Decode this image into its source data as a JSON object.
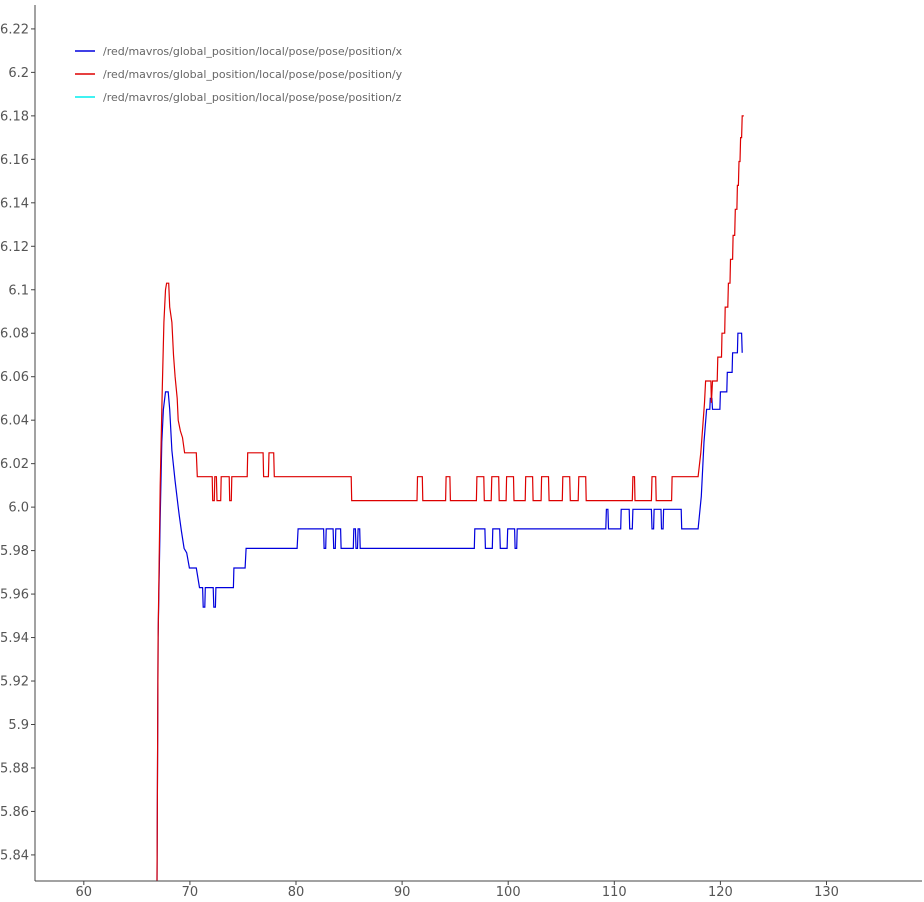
{
  "chart_data": {
    "type": "line",
    "title": "",
    "xlabel": "",
    "ylabel": "",
    "xlim": [
      55.4,
      139
    ],
    "ylim": [
      5.828,
      6.231
    ],
    "x_ticks": [
      60,
      70,
      80,
      90,
      100,
      110,
      120,
      130
    ],
    "y_ticks": [
      5.84,
      5.86,
      5.88,
      5.9,
      5.92,
      5.94,
      5.96,
      5.98,
      6.0,
      6.02,
      6.04,
      6.06,
      6.08,
      6.1,
      6.12,
      6.14,
      6.16,
      6.18,
      6.2,
      6.22
    ],
    "y_tick_labels": [
      "5.84",
      "5.86",
      "5.88",
      "5.9",
      "5.92",
      "5.94",
      "5.96",
      "5.98",
      "6.0",
      "6.02",
      "6.04",
      "6.06",
      "6.08",
      "6.1",
      "6.12",
      "6.14",
      "6.16",
      "6.18",
      "6.2",
      "6.22"
    ],
    "grid": false,
    "legend_position": "top-left",
    "series": [
      {
        "name": "/red/mavros/global_position/local/pose/pose/position/x",
        "color": "#0000dd",
        "points": [
          [
            66.9,
            5.828
          ],
          [
            67.0,
            5.94
          ],
          [
            67.2,
            5.995
          ],
          [
            67.35,
            6.03
          ],
          [
            67.5,
            6.045
          ],
          [
            67.7,
            6.053
          ],
          [
            67.95,
            6.053
          ],
          [
            68.1,
            6.045
          ],
          [
            68.3,
            6.026
          ],
          [
            68.6,
            6.012
          ],
          [
            68.9,
            6.0
          ],
          [
            69.0,
            5.996
          ],
          [
            69.2,
            5.989
          ],
          [
            69.45,
            5.981
          ],
          [
            69.7,
            5.979
          ],
          [
            69.95,
            5.972
          ],
          [
            70.6,
            5.972
          ],
          [
            70.9,
            5.963
          ],
          [
            71.2,
            5.963
          ],
          [
            71.25,
            5.954
          ],
          [
            71.4,
            5.954
          ],
          [
            71.45,
            5.963
          ],
          [
            72.2,
            5.963
          ],
          [
            72.25,
            5.954
          ],
          [
            72.4,
            5.954
          ],
          [
            72.45,
            5.963
          ],
          [
            74.1,
            5.963
          ],
          [
            74.15,
            5.972
          ],
          [
            75.2,
            5.972
          ],
          [
            75.3,
            5.981
          ],
          [
            80.1,
            5.981
          ],
          [
            80.2,
            5.99
          ],
          [
            82.6,
            5.99
          ],
          [
            82.65,
            5.981
          ],
          [
            82.8,
            5.981
          ],
          [
            82.85,
            5.99
          ],
          [
            83.5,
            5.99
          ],
          [
            83.55,
            5.981
          ],
          [
            83.7,
            5.981
          ],
          [
            83.75,
            5.99
          ],
          [
            84.2,
            5.99
          ],
          [
            84.25,
            5.981
          ],
          [
            85.4,
            5.981
          ],
          [
            85.45,
            5.99
          ],
          [
            85.6,
            5.99
          ],
          [
            85.65,
            5.981
          ],
          [
            85.8,
            5.981
          ],
          [
            85.85,
            5.99
          ],
          [
            86.0,
            5.99
          ],
          [
            86.05,
            5.981
          ],
          [
            96.8,
            5.981
          ],
          [
            96.85,
            5.99
          ],
          [
            97.8,
            5.99
          ],
          [
            97.85,
            5.981
          ],
          [
            98.5,
            5.981
          ],
          [
            98.55,
            5.99
          ],
          [
            99.2,
            5.99
          ],
          [
            99.25,
            5.981
          ],
          [
            99.9,
            5.981
          ],
          [
            99.95,
            5.99
          ],
          [
            100.6,
            5.99
          ],
          [
            100.65,
            5.981
          ],
          [
            100.8,
            5.981
          ],
          [
            100.85,
            5.99
          ],
          [
            109.2,
            5.99
          ],
          [
            109.25,
            5.999
          ],
          [
            109.4,
            5.999
          ],
          [
            109.45,
            5.99
          ],
          [
            110.6,
            5.99
          ],
          [
            110.65,
            5.999
          ],
          [
            111.4,
            5.999
          ],
          [
            111.45,
            5.99
          ],
          [
            111.7,
            5.99
          ],
          [
            111.75,
            5.999
          ],
          [
            113.5,
            5.999
          ],
          [
            113.55,
            5.99
          ],
          [
            113.7,
            5.99
          ],
          [
            113.75,
            5.999
          ],
          [
            114.4,
            5.999
          ],
          [
            114.45,
            5.99
          ],
          [
            114.6,
            5.99
          ],
          [
            114.65,
            5.999
          ],
          [
            116.3,
            5.999
          ],
          [
            116.35,
            5.99
          ],
          [
            117.9,
            5.99
          ],
          [
            118.2,
            6.005
          ],
          [
            118.45,
            6.03
          ],
          [
            118.7,
            6.045
          ],
          [
            119.0,
            6.045
          ],
          [
            119.05,
            6.05
          ],
          [
            119.2,
            6.05
          ],
          [
            119.25,
            6.045
          ],
          [
            119.95,
            6.045
          ],
          [
            120.0,
            6.053
          ],
          [
            120.6,
            6.053
          ],
          [
            120.65,
            6.062
          ],
          [
            121.1,
            6.062
          ],
          [
            121.15,
            6.071
          ],
          [
            121.6,
            6.071
          ],
          [
            121.65,
            6.08
          ],
          [
            122.0,
            6.08
          ],
          [
            122.05,
            6.071
          ]
        ]
      },
      {
        "name": "/red/mavros/global_position/local/pose/pose/position/y",
        "color": "#dd0000",
        "points": [
          [
            66.9,
            5.828
          ],
          [
            67.0,
            5.94
          ],
          [
            67.2,
            6.01
          ],
          [
            67.4,
            6.055
          ],
          [
            67.55,
            6.085
          ],
          [
            67.7,
            6.1
          ],
          [
            67.8,
            6.103
          ],
          [
            68.0,
            6.103
          ],
          [
            68.1,
            6.092
          ],
          [
            68.3,
            6.085
          ],
          [
            68.45,
            6.07
          ],
          [
            68.6,
            6.06
          ],
          [
            68.8,
            6.05
          ],
          [
            68.9,
            6.04
          ],
          [
            69.1,
            6.035
          ],
          [
            69.3,
            6.032
          ],
          [
            69.5,
            6.025
          ],
          [
            70.6,
            6.025
          ],
          [
            70.7,
            6.014
          ],
          [
            72.1,
            6.014
          ],
          [
            72.15,
            6.003
          ],
          [
            72.3,
            6.003
          ],
          [
            72.35,
            6.014
          ],
          [
            72.5,
            6.014
          ],
          [
            72.55,
            6.003
          ],
          [
            72.9,
            6.003
          ],
          [
            72.95,
            6.014
          ],
          [
            73.7,
            6.014
          ],
          [
            73.75,
            6.003
          ],
          [
            73.9,
            6.003
          ],
          [
            73.95,
            6.014
          ],
          [
            75.4,
            6.014
          ],
          [
            75.45,
            6.025
          ],
          [
            76.9,
            6.025
          ],
          [
            76.95,
            6.014
          ],
          [
            77.4,
            6.014
          ],
          [
            77.45,
            6.025
          ],
          [
            77.9,
            6.025
          ],
          [
            77.95,
            6.014
          ],
          [
            85.2,
            6.014
          ],
          [
            85.25,
            6.003
          ],
          [
            91.4,
            6.003
          ],
          [
            91.45,
            6.014
          ],
          [
            91.9,
            6.014
          ],
          [
            91.95,
            6.003
          ],
          [
            94.1,
            6.003
          ],
          [
            94.15,
            6.014
          ],
          [
            94.5,
            6.014
          ],
          [
            94.55,
            6.003
          ],
          [
            97.0,
            6.003
          ],
          [
            97.05,
            6.014
          ],
          [
            97.7,
            6.014
          ],
          [
            97.75,
            6.003
          ],
          [
            98.4,
            6.003
          ],
          [
            98.45,
            6.014
          ],
          [
            99.1,
            6.014
          ],
          [
            99.15,
            6.003
          ],
          [
            99.8,
            6.003
          ],
          [
            99.85,
            6.014
          ],
          [
            100.5,
            6.014
          ],
          [
            100.55,
            6.003
          ],
          [
            101.6,
            6.003
          ],
          [
            101.65,
            6.014
          ],
          [
            102.3,
            6.014
          ],
          [
            102.35,
            6.003
          ],
          [
            103.1,
            6.003
          ],
          [
            103.15,
            6.014
          ],
          [
            103.8,
            6.014
          ],
          [
            103.85,
            6.003
          ],
          [
            105.1,
            6.003
          ],
          [
            105.15,
            6.014
          ],
          [
            105.8,
            6.014
          ],
          [
            105.85,
            6.003
          ],
          [
            106.6,
            6.003
          ],
          [
            106.65,
            6.014
          ],
          [
            107.3,
            6.014
          ],
          [
            107.35,
            6.003
          ],
          [
            111.7,
            6.003
          ],
          [
            111.75,
            6.014
          ],
          [
            111.9,
            6.014
          ],
          [
            111.95,
            6.003
          ],
          [
            113.5,
            6.003
          ],
          [
            113.55,
            6.014
          ],
          [
            113.9,
            6.014
          ],
          [
            113.95,
            6.003
          ],
          [
            115.4,
            6.003
          ],
          [
            115.45,
            6.014
          ],
          [
            117.9,
            6.014
          ],
          [
            118.15,
            6.025
          ],
          [
            118.35,
            6.038
          ],
          [
            118.5,
            6.048
          ],
          [
            118.6,
            6.058
          ],
          [
            119.1,
            6.058
          ],
          [
            119.15,
            6.048
          ],
          [
            119.25,
            6.058
          ],
          [
            119.7,
            6.058
          ],
          [
            119.75,
            6.069
          ],
          [
            120.1,
            6.069
          ],
          [
            120.15,
            6.08
          ],
          [
            120.4,
            6.08
          ],
          [
            120.45,
            6.092
          ],
          [
            120.7,
            6.092
          ],
          [
            120.75,
            6.103
          ],
          [
            120.9,
            6.103
          ],
          [
            120.95,
            6.114
          ],
          [
            121.15,
            6.114
          ],
          [
            121.2,
            6.125
          ],
          [
            121.35,
            6.125
          ],
          [
            121.4,
            6.137
          ],
          [
            121.55,
            6.137
          ],
          [
            121.6,
            6.148
          ],
          [
            121.7,
            6.148
          ],
          [
            121.75,
            6.159
          ],
          [
            121.85,
            6.159
          ],
          [
            121.9,
            6.17
          ],
          [
            122.0,
            6.17
          ],
          [
            122.05,
            6.18
          ],
          [
            122.2,
            6.18
          ]
        ]
      },
      {
        "name": "/red/mavros/global_position/local/pose/pose/position/z",
        "color": "#00eeee",
        "points": []
      }
    ]
  }
}
